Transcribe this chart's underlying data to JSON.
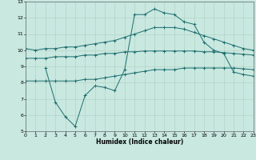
{
  "xlabel": "Humidex (Indice chaleur)",
  "xlim": [
    0,
    23
  ],
  "ylim": [
    5,
    13
  ],
  "xticks": [
    0,
    1,
    2,
    3,
    4,
    5,
    6,
    7,
    8,
    9,
    10,
    11,
    12,
    13,
    14,
    15,
    16,
    17,
    18,
    19,
    20,
    21,
    22,
    23
  ],
  "yticks": [
    5,
    6,
    7,
    8,
    9,
    10,
    11,
    12,
    13
  ],
  "bg_color": "#c8e8e0",
  "line_color": "#1e6e6e",
  "line1_x": [
    0,
    1,
    2,
    3,
    4,
    5,
    6,
    7,
    8,
    9,
    10,
    11,
    12,
    13,
    14,
    15,
    16,
    17,
    18,
    19,
    20,
    21,
    22,
    23
  ],
  "line1_y": [
    10.1,
    10.0,
    10.1,
    10.1,
    10.2,
    10.2,
    10.3,
    10.4,
    10.5,
    10.6,
    10.8,
    11.0,
    11.2,
    11.4,
    11.4,
    11.4,
    11.3,
    11.1,
    10.9,
    10.7,
    10.5,
    10.3,
    10.1,
    10.0
  ],
  "line2_x": [
    0,
    1,
    2,
    3,
    4,
    5,
    6,
    7,
    8,
    9,
    10,
    11,
    12,
    13,
    14,
    15,
    16,
    17,
    18,
    19,
    20,
    21,
    22,
    23
  ],
  "line2_y": [
    9.5,
    9.5,
    9.5,
    9.6,
    9.6,
    9.6,
    9.7,
    9.7,
    9.8,
    9.8,
    9.9,
    9.9,
    9.95,
    9.95,
    9.95,
    9.95,
    9.95,
    9.95,
    9.9,
    9.9,
    9.85,
    9.8,
    9.75,
    9.7
  ],
  "line3_x": [
    0,
    1,
    2,
    3,
    4,
    5,
    6,
    7,
    8,
    9,
    10,
    11,
    12,
    13,
    14,
    15,
    16,
    17,
    18,
    19,
    20,
    21,
    22,
    23
  ],
  "line3_y": [
    8.1,
    8.1,
    8.1,
    8.1,
    8.1,
    8.1,
    8.2,
    8.2,
    8.3,
    8.4,
    8.5,
    8.6,
    8.7,
    8.8,
    8.8,
    8.8,
    8.9,
    8.9,
    8.9,
    8.9,
    8.9,
    8.9,
    8.85,
    8.8
  ],
  "line4_x": [
    2,
    3,
    4,
    5,
    6,
    7,
    8,
    9,
    10,
    11,
    12,
    13,
    14,
    15,
    16,
    17,
    18,
    19,
    20,
    21,
    22,
    23
  ],
  "line4_y": [
    8.9,
    6.8,
    5.9,
    5.3,
    7.2,
    7.8,
    7.7,
    7.5,
    8.8,
    12.2,
    12.2,
    12.55,
    12.3,
    12.2,
    11.75,
    11.6,
    10.5,
    10.0,
    9.8,
    8.65,
    8.5,
    8.4
  ]
}
